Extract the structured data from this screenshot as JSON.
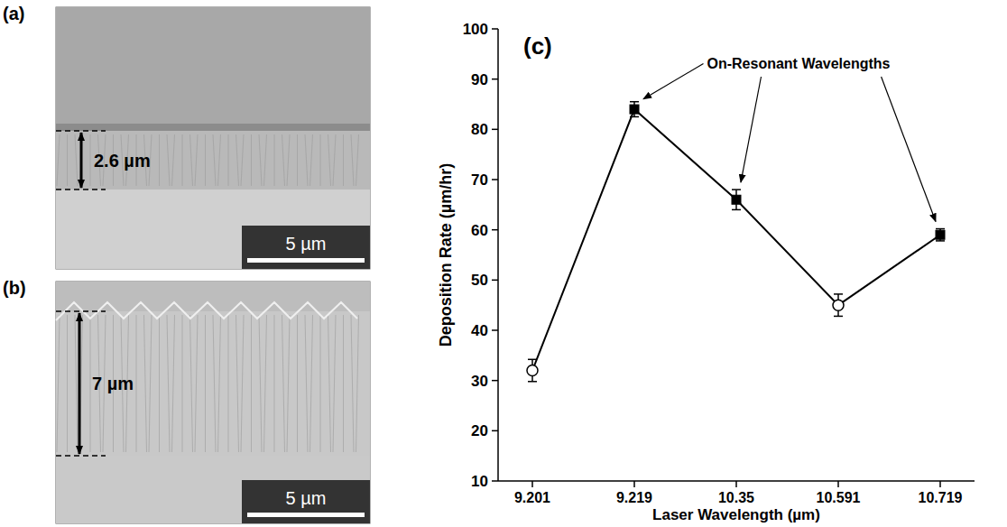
{
  "images": [
    {
      "letter": "(a)",
      "thickness_label": "2.6 µm",
      "scale_bar": "5 µm"
    },
    {
      "letter": "(b)",
      "thickness_label": "7 µm",
      "scale_bar": "5 µm"
    }
  ],
  "chart_data": {
    "type": "line",
    "label": "(c)",
    "x_label": "Laser Wavelength (µm)",
    "y_label": "Deposition Rate (µm/hr)",
    "categories": [
      "9.201",
      "9.219",
      "10.35",
      "10.591",
      "10.719"
    ],
    "values": [
      32,
      84,
      66,
      45,
      59
    ],
    "errors": [
      2.2,
      1.5,
      2,
      2.2,
      1.2
    ],
    "color": "#000000",
    "marker": "square",
    "ylim": [
      10,
      100
    ],
    "yticks": [
      10,
      20,
      30,
      40,
      50,
      60,
      70,
      80,
      90,
      100
    ],
    "grid": false,
    "annotation": {
      "text": "On-Resonant Wavelengths",
      "points": [
        1,
        2,
        4
      ]
    }
  }
}
